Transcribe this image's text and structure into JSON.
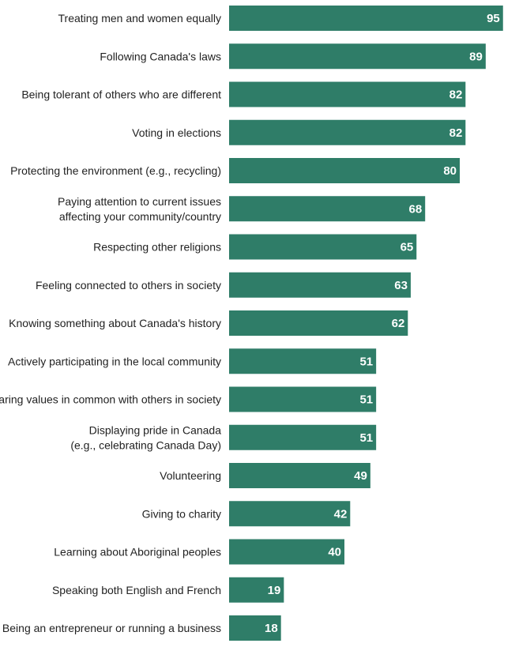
{
  "colors": {
    "bar": "#2f7d68",
    "value_text": "#ffffff",
    "label_text": "#222222",
    "background": "#ffffff"
  },
  "chart_data": {
    "type": "bar",
    "orientation": "horizontal",
    "categories": [
      [
        "Treating men and women equally"
      ],
      [
        "Following Canada's laws"
      ],
      [
        "Being tolerant of others who are different"
      ],
      [
        "Voting in elections"
      ],
      [
        "Protecting the environment (e.g., recycling)"
      ],
      [
        "Paying attention to current issues",
        "affecting your community/country"
      ],
      [
        "Respecting other religions"
      ],
      [
        "Feeling connected to others in society"
      ],
      [
        "Knowing something about Canada's history"
      ],
      [
        "Actively participating in the local community"
      ],
      [
        "Sharing values in common with others in society"
      ],
      [
        "Displaying pride in Canada",
        "(e.g., celebrating Canada Day)"
      ],
      [
        "Volunteering"
      ],
      [
        "Giving to charity"
      ],
      [
        "Learning about Aboriginal peoples"
      ],
      [
        "Speaking both English and French"
      ],
      [
        "Being an entrepreneur or running a business"
      ]
    ],
    "values": [
      95,
      89,
      82,
      82,
      80,
      68,
      65,
      63,
      62,
      51,
      51,
      51,
      49,
      42,
      40,
      19,
      18
    ],
    "value_labels_position": "inside-end",
    "xlim": [
      0,
      100
    ],
    "grid": false,
    "legend": "none",
    "title": "",
    "xlabel": "",
    "ylabel": ""
  }
}
